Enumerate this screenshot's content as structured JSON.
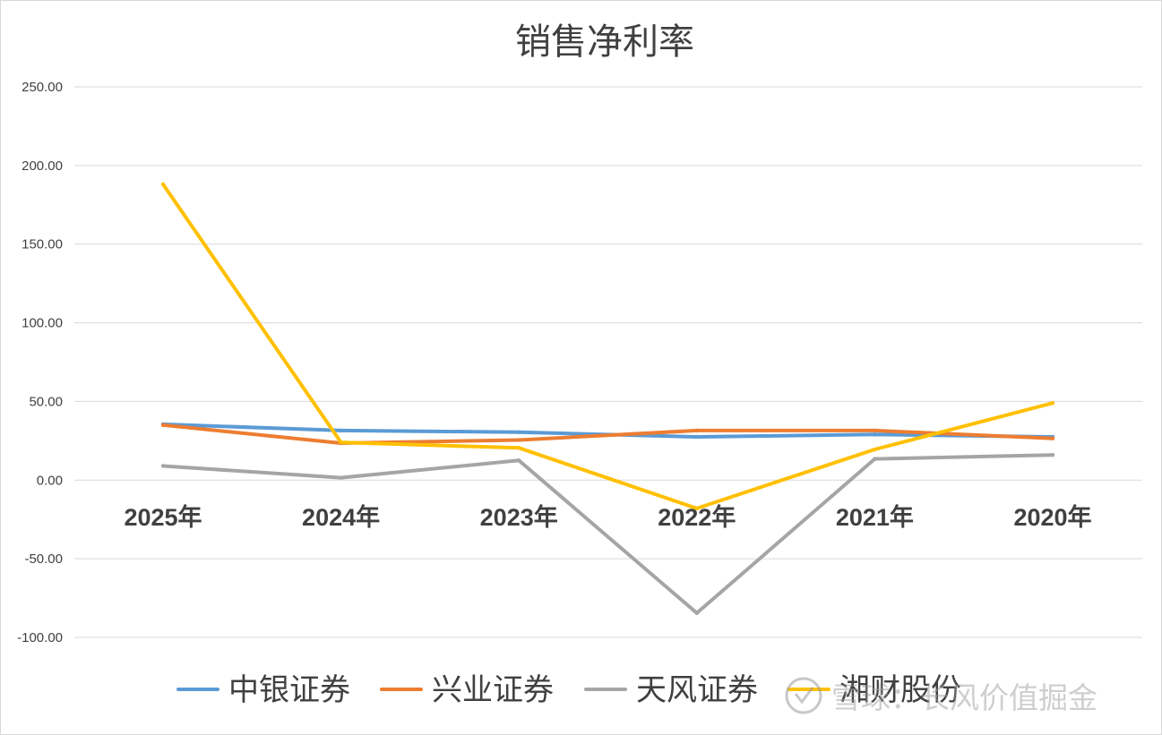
{
  "chart_data": {
    "type": "line",
    "title": "销售净利率",
    "categories": [
      "2025年",
      "2024年",
      "2023年",
      "2022年",
      "2021年",
      "2020年"
    ],
    "ylim": [
      -100,
      250
    ],
    "yticks": [
      "250.00",
      "200.00",
      "150.00",
      "100.00",
      "50.00",
      "0.00",
      "-50.00",
      "-100.00"
    ],
    "ytick_values": [
      250,
      200,
      150,
      100,
      50,
      0,
      -50,
      -100
    ],
    "grid": true,
    "legend_position": "bottom",
    "series": [
      {
        "name": "中银证券",
        "color": "#5b9bd5",
        "values": [
          35.5,
          31.5,
          30.5,
          27.5,
          29,
          27.5
        ]
      },
      {
        "name": "兴业证券",
        "color": "#ed7d31",
        "values": [
          35,
          23.5,
          25.5,
          31.5,
          31.5,
          26.5
        ]
      },
      {
        "name": "天风证券",
        "color": "#a5a5a5",
        "values": [
          9,
          1.5,
          12.5,
          -84.5,
          13.5,
          16
        ]
      },
      {
        "name": "湘财股份",
        "color": "#ffc000",
        "values": [
          188,
          24,
          20.5,
          -18,
          19.5,
          49
        ]
      }
    ]
  },
  "watermark": {
    "text": "雪球：长风价值掘金",
    "icon": "snowball-logo-icon"
  }
}
